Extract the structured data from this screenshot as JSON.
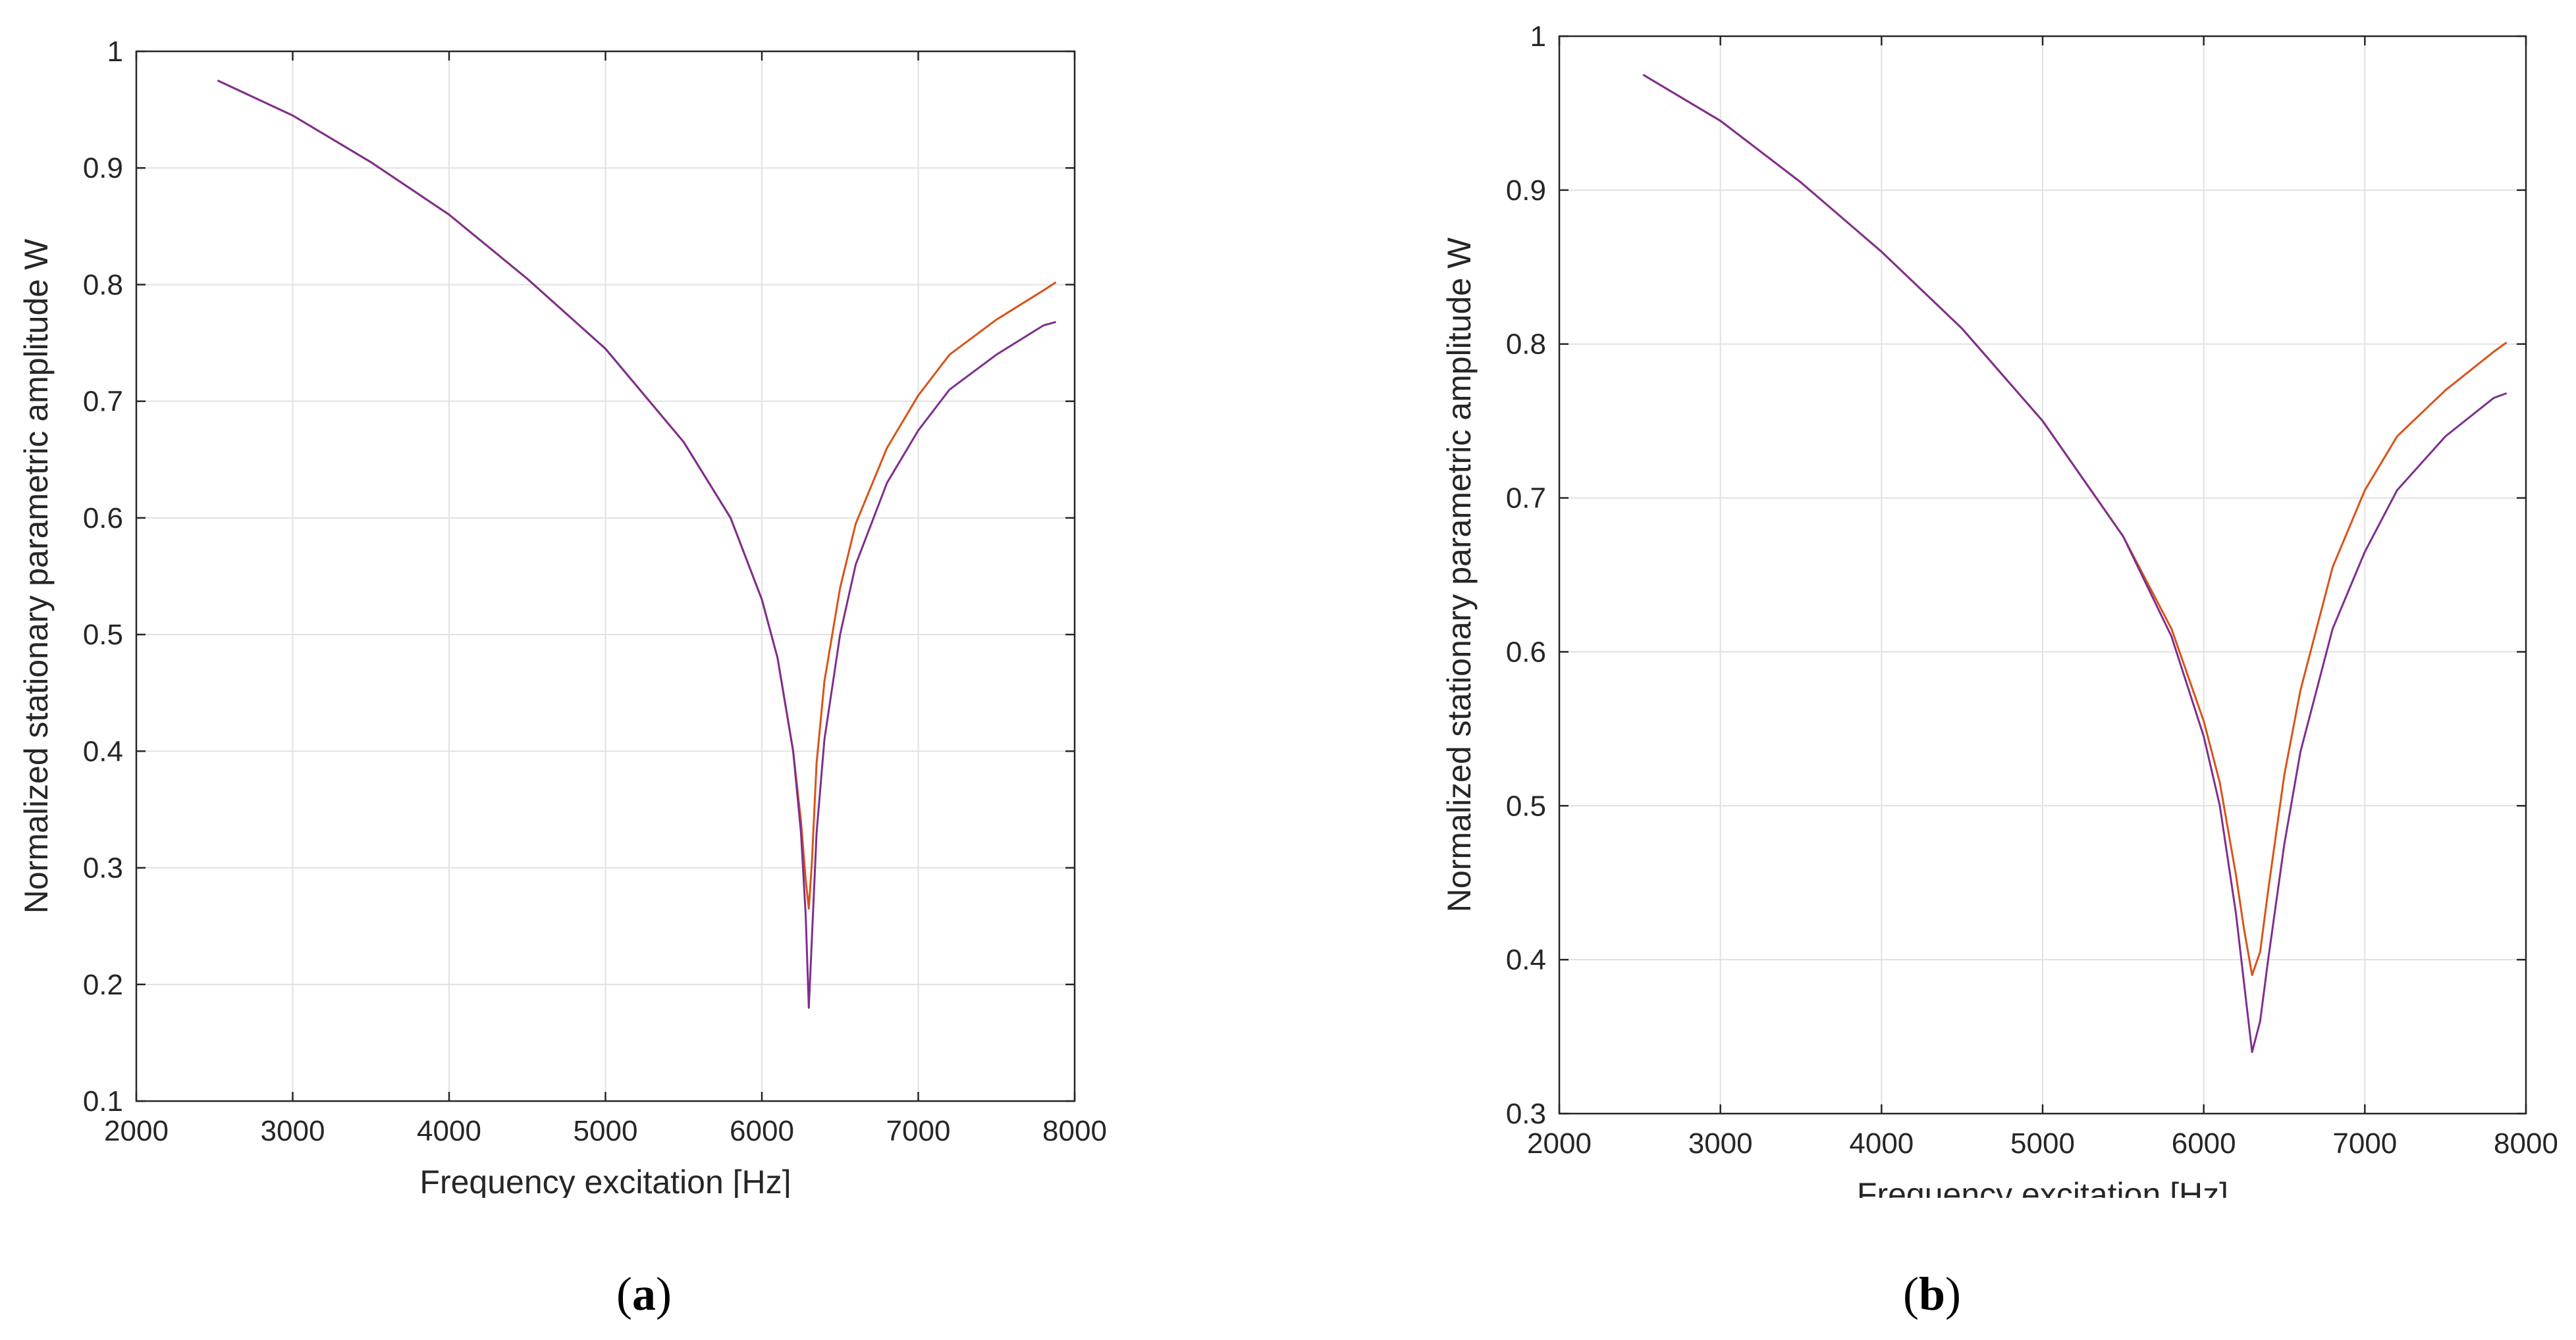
{
  "chart_data": [
    {
      "type": "line",
      "panel_label": "a",
      "xlabel": "Frequency excitation [Hz]",
      "ylabel": "Normalized stationary parametric amplitude W",
      "xlim": [
        2000,
        8000
      ],
      "ylim": [
        0.1,
        1
      ],
      "xticks": [
        2000,
        3000,
        4000,
        5000,
        6000,
        7000,
        8000
      ],
      "yticks": [
        0.1,
        0.2,
        0.3,
        0.4,
        0.5,
        0.6,
        0.7,
        0.8,
        0.9,
        1
      ],
      "ytick_labels": [
        "0.1",
        "0.2",
        "0.3",
        "0.4",
        "0.5",
        "0.6",
        "0.7",
        "0.8",
        "0.9",
        "1"
      ],
      "grid": true,
      "series": [
        {
          "name": "series-1",
          "color": "#D95319",
          "x": [
            2520,
            3000,
            3500,
            4000,
            4500,
            5000,
            5500,
            5800,
            6000,
            6100,
            6200,
            6250,
            6280,
            6300,
            6320,
            6350,
            6400,
            6500,
            6600,
            6800,
            7000,
            7200,
            7500,
            7800,
            7880
          ],
          "y": [
            0.975,
            0.945,
            0.905,
            0.86,
            0.805,
            0.745,
            0.665,
            0.6,
            0.53,
            0.48,
            0.4,
            0.34,
            0.29,
            0.265,
            0.305,
            0.39,
            0.46,
            0.54,
            0.595,
            0.66,
            0.705,
            0.74,
            0.77,
            0.795,
            0.802
          ]
        },
        {
          "name": "series-2",
          "color": "#7E2F8E",
          "x": [
            2520,
            3000,
            3500,
            4000,
            4500,
            5000,
            5500,
            5800,
            6000,
            6100,
            6200,
            6250,
            6280,
            6300,
            6320,
            6350,
            6400,
            6500,
            6600,
            6800,
            7000,
            7200,
            7500,
            7800,
            7880
          ],
          "y": [
            0.975,
            0.945,
            0.905,
            0.86,
            0.805,
            0.745,
            0.665,
            0.6,
            0.53,
            0.48,
            0.4,
            0.33,
            0.26,
            0.18,
            0.24,
            0.33,
            0.41,
            0.5,
            0.56,
            0.63,
            0.675,
            0.71,
            0.74,
            0.765,
            0.768
          ]
        }
      ]
    },
    {
      "type": "line",
      "panel_label": "b",
      "xlabel": "Frequency excitation [Hz]",
      "ylabel": "Normalized stationary parametric amplitude W",
      "xlim": [
        2000,
        8000
      ],
      "ylim": [
        0.3,
        1
      ],
      "xticks": [
        2000,
        3000,
        4000,
        5000,
        6000,
        7000,
        8000
      ],
      "yticks": [
        0.3,
        0.4,
        0.5,
        0.6,
        0.7,
        0.8,
        0.9,
        1
      ],
      "ytick_labels": [
        "0.3",
        "0.4",
        "0.5",
        "0.6",
        "0.7",
        "0.8",
        "0.9",
        "1"
      ],
      "grid": true,
      "series": [
        {
          "name": "series-1",
          "color": "#D95319",
          "x": [
            2520,
            3000,
            3500,
            4000,
            4500,
            5000,
            5500,
            5800,
            6000,
            6100,
            6200,
            6250,
            6300,
            6350,
            6400,
            6500,
            6600,
            6800,
            7000,
            7200,
            7500,
            7800,
            7880
          ],
          "y": [
            0.975,
            0.945,
            0.905,
            0.86,
            0.81,
            0.75,
            0.675,
            0.615,
            0.555,
            0.515,
            0.455,
            0.42,
            0.39,
            0.405,
            0.445,
            0.52,
            0.575,
            0.655,
            0.705,
            0.74,
            0.77,
            0.795,
            0.801
          ]
        },
        {
          "name": "series-2",
          "color": "#7E2F8E",
          "x": [
            2520,
            3000,
            3500,
            4000,
            4500,
            5000,
            5500,
            5800,
            6000,
            6100,
            6200,
            6250,
            6300,
            6350,
            6400,
            6500,
            6600,
            6800,
            7000,
            7200,
            7500,
            7800,
            7880
          ],
          "y": [
            0.975,
            0.945,
            0.905,
            0.86,
            0.81,
            0.75,
            0.675,
            0.61,
            0.545,
            0.5,
            0.43,
            0.385,
            0.34,
            0.36,
            0.4,
            0.475,
            0.535,
            0.615,
            0.665,
            0.705,
            0.74,
            0.765,
            0.768
          ]
        }
      ]
    }
  ],
  "captions": [
    {
      "open": "(",
      "label": "a",
      "close": ")"
    },
    {
      "open": "(",
      "label": "b",
      "close": ")"
    }
  ]
}
